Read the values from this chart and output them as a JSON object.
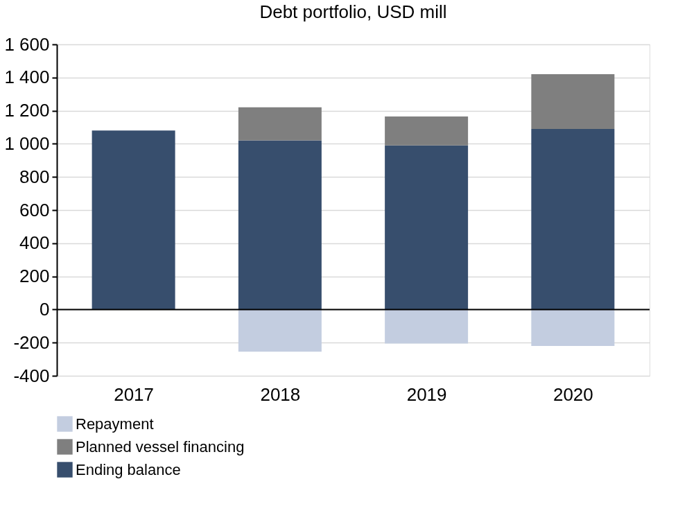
{
  "chart_data": {
    "type": "bar",
    "title": "Debt portfolio, USD mill",
    "categories": [
      "2017",
      "2018",
      "2019",
      "2020"
    ],
    "stacked": true,
    "series": [
      {
        "name": "Ending balance",
        "color": "#374e6d",
        "values": [
          1080,
          1020,
          990,
          1090
        ]
      },
      {
        "name": "Planned vessel financing",
        "color": "#7f7f7f",
        "values": [
          null,
          200,
          175,
          330
        ]
      },
      {
        "name": "Repayment",
        "color": "#c3cde0",
        "values": [
          null,
          -255,
          -205,
          -220
        ]
      }
    ],
    "ylim": [
      -400,
      1600
    ],
    "yticks": [
      {
        "value": -400,
        "label": "-400"
      },
      {
        "value": -200,
        "label": "-200"
      },
      0,
      200,
      400,
      600,
      800,
      {
        "value": 1000,
        "label": "1 000"
      },
      {
        "value": 1200,
        "label": "1 200"
      },
      {
        "value": 1400,
        "label": "1 400"
      },
      {
        "value": 1600,
        "label": "1 600"
      }
    ],
    "grid": "y",
    "legend": "bottom left"
  }
}
